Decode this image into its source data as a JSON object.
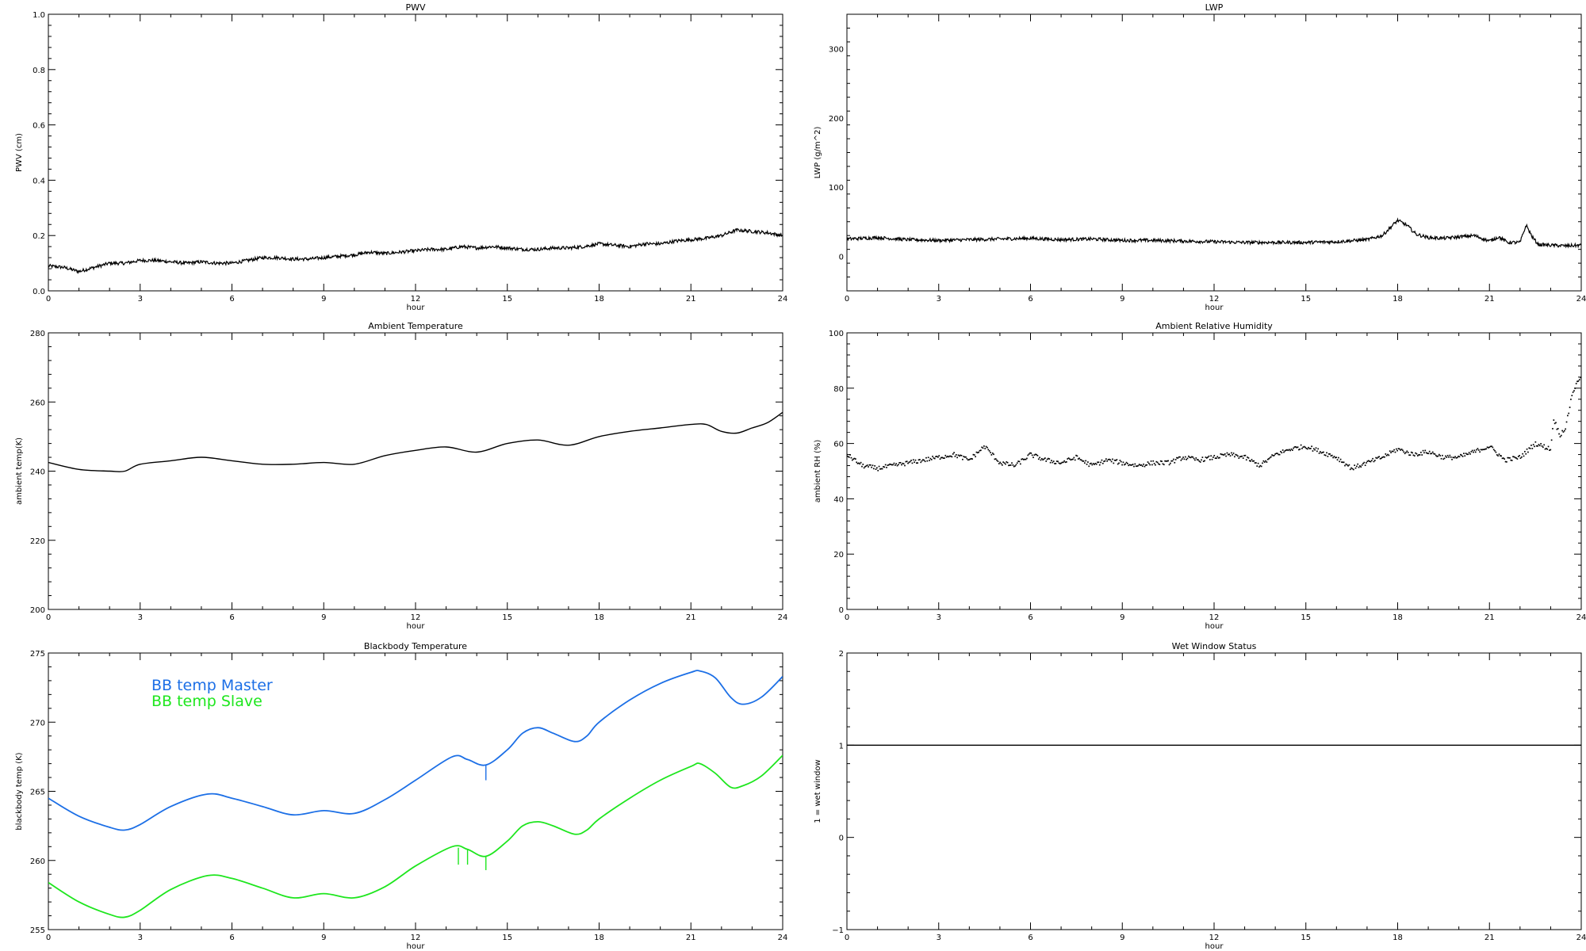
{
  "colors": {
    "axis": "#000000",
    "trace": "#000000",
    "master": "#1c6fe6",
    "slave": "#1ee61e"
  },
  "chart_data": [
    {
      "id": "pwv",
      "type": "line",
      "title": "PWV",
      "xlabel": "hour",
      "ylabel": "PWV (cm)",
      "xlim": [
        0,
        24
      ],
      "ylim": [
        0,
        1.0
      ],
      "xticks": [
        0,
        3,
        6,
        9,
        12,
        15,
        18,
        21,
        24
      ],
      "yticks": [
        0.0,
        0.2,
        0.4,
        0.6,
        0.8,
        1.0
      ],
      "ytick_labels": [
        "0.0",
        "0.2",
        "0.4",
        "0.6",
        "0.8",
        "1.0"
      ],
      "grid": false,
      "noisy": true,
      "series": [
        {
          "color": "trace",
          "x": [
            0,
            0.5,
            1.0,
            1.5,
            2.0,
            2.5,
            3.0,
            3.5,
            4.0,
            4.5,
            5.0,
            5.5,
            6.0,
            6.5,
            7.0,
            7.5,
            8.0,
            8.5,
            9.0,
            9.5,
            10.0,
            10.5,
            11.0,
            11.5,
            12.0,
            12.5,
            13.0,
            13.5,
            14.0,
            14.5,
            15.0,
            15.5,
            16.0,
            16.5,
            17.0,
            17.5,
            18.0,
            18.5,
            19.0,
            19.5,
            20.0,
            20.5,
            21.0,
            21.5,
            22.0,
            22.5,
            23.0,
            23.5,
            24.0
          ],
          "y": [
            0.09,
            0.085,
            0.07,
            0.085,
            0.1,
            0.1,
            0.11,
            0.11,
            0.105,
            0.1,
            0.105,
            0.1,
            0.1,
            0.11,
            0.12,
            0.12,
            0.115,
            0.115,
            0.12,
            0.125,
            0.13,
            0.14,
            0.135,
            0.14,
            0.145,
            0.15,
            0.15,
            0.16,
            0.155,
            0.16,
            0.155,
            0.15,
            0.15,
            0.155,
            0.155,
            0.16,
            0.17,
            0.165,
            0.16,
            0.17,
            0.17,
            0.18,
            0.185,
            0.19,
            0.2,
            0.22,
            0.215,
            0.21,
            0.2
          ]
        }
      ]
    },
    {
      "id": "lwp",
      "type": "line",
      "title": "LWP",
      "xlabel": "hour",
      "ylabel": "LWP (g/m^2)",
      "xlim": [
        0,
        24
      ],
      "ylim": [
        -50,
        350
      ],
      "xticks": [
        0,
        3,
        6,
        9,
        12,
        15,
        18,
        21,
        24
      ],
      "yticks": [
        0,
        100,
        200,
        300
      ],
      "ytick_labels": [
        "0",
        "100",
        "200",
        "300"
      ],
      "grid": false,
      "noisy": true,
      "series": [
        {
          "color": "trace",
          "x": [
            0,
            1,
            2,
            3,
            4,
            5,
            6,
            7,
            8,
            9,
            10,
            11,
            12,
            13,
            14,
            15,
            16,
            17,
            17.5,
            18.0,
            18.3,
            18.6,
            19.0,
            19.5,
            20.0,
            20.5,
            21.0,
            21.3,
            21.6,
            22.0,
            22.2,
            22.4,
            22.6,
            23.0,
            23.5,
            24.0
          ],
          "y": [
            25,
            27,
            24,
            23,
            24,
            25,
            26,
            24,
            25,
            23,
            23,
            22,
            21,
            20,
            20,
            20,
            21,
            24,
            30,
            52,
            45,
            32,
            27,
            26,
            28,
            30,
            22,
            28,
            20,
            20,
            45,
            28,
            17,
            16,
            15,
            16
          ]
        }
      ]
    },
    {
      "id": "ambient_temperature",
      "type": "line",
      "title": "Ambient Temperature",
      "xlabel": "hour",
      "ylabel": "ambient temp(K)",
      "xlim": [
        0,
        24
      ],
      "ylim": [
        200,
        280
      ],
      "xticks": [
        0,
        3,
        6,
        9,
        12,
        15,
        18,
        21,
        24
      ],
      "yticks": [
        200,
        220,
        240,
        260,
        280
      ],
      "ytick_labels": [
        "200",
        "220",
        "240",
        "260",
        "280"
      ],
      "grid": false,
      "noisy": false,
      "series": [
        {
          "color": "trace",
          "x": [
            0,
            1,
            2,
            2.5,
            3,
            4,
            5,
            6,
            7,
            8,
            9,
            10,
            11,
            12,
            13,
            14,
            15,
            16,
            17,
            18,
            19,
            20,
            21,
            21.5,
            22,
            22.5,
            23,
            23.5,
            24
          ],
          "y": [
            242.5,
            240.5,
            240,
            240,
            242,
            243,
            244,
            243,
            242,
            242,
            242.5,
            242,
            244.5,
            246,
            247,
            245.5,
            248,
            249,
            247.5,
            250,
            251.5,
            252.5,
            253.5,
            253.5,
            251.5,
            251,
            252.5,
            254,
            257
          ]
        }
      ]
    },
    {
      "id": "ambient_relative_humidity",
      "type": "scatter",
      "title": "Ambient Relative Humidity",
      "xlabel": "hour",
      "ylabel": "ambient RH (%)",
      "xlim": [
        0,
        24
      ],
      "ylim": [
        0,
        100
      ],
      "xticks": [
        0,
        3,
        6,
        9,
        12,
        15,
        18,
        21,
        24
      ],
      "yticks": [
        0,
        20,
        40,
        60,
        80,
        100
      ],
      "ytick_labels": [
        "0",
        "20",
        "40",
        "60",
        "80",
        "100"
      ],
      "grid": false,
      "noisy": true,
      "series": [
        {
          "color": "trace",
          "x": [
            0,
            0.5,
            1,
            1.5,
            2,
            2.5,
            3,
            3.5,
            4,
            4.5,
            5,
            5.5,
            6,
            6.5,
            7,
            7.5,
            8,
            8.5,
            9,
            9.5,
            10,
            10.5,
            11,
            11.5,
            12,
            12.5,
            13,
            13.5,
            14,
            14.5,
            15,
            15.5,
            16,
            16.5,
            17,
            17.5,
            18,
            18.5,
            19,
            19.5,
            20,
            20.5,
            21,
            21.5,
            22,
            22.5,
            23.0,
            23.1,
            23.3,
            23.5,
            23.7,
            24.0
          ],
          "y": [
            56,
            52,
            51,
            52,
            53,
            54,
            55,
            56,
            54,
            59,
            53,
            52,
            56,
            54,
            53,
            55,
            52,
            54,
            53,
            52,
            53,
            53,
            55,
            54,
            55,
            56,
            55,
            52,
            56,
            58,
            59,
            57,
            55,
            51,
            53,
            55,
            58,
            56,
            57,
            55,
            55,
            57,
            59,
            54,
            55,
            60,
            58,
            69,
            63,
            66,
            78,
            85
          ]
        }
      ]
    },
    {
      "id": "blackbody_temperature",
      "type": "line",
      "title": "Blackbody Temperature",
      "xlabel": "hour",
      "ylabel": "blackbody temp (K)",
      "xlim": [
        0,
        24
      ],
      "ylim": [
        255,
        275
      ],
      "xticks": [
        0,
        3,
        6,
        9,
        12,
        15,
        18,
        21,
        24
      ],
      "yticks": [
        255,
        260,
        265,
        270,
        275
      ],
      "ytick_labels": [
        "255",
        "260",
        "265",
        "270",
        "275"
      ],
      "grid": false,
      "noisy": false,
      "legend": {
        "placement": "top-left"
      },
      "series": [
        {
          "name": "BB temp Master",
          "color": "master",
          "x": [
            0,
            1,
            2,
            2.5,
            3,
            4,
            5.2,
            6,
            7,
            8,
            9,
            10,
            11,
            12,
            13.2,
            13.7,
            14.3,
            15,
            15.5,
            16,
            16.5,
            17.2,
            17.6,
            18,
            19,
            20,
            21,
            21.3,
            21.8,
            22.3,
            22.7,
            23.3,
            24
          ],
          "y": [
            264.5,
            263.2,
            262.4,
            262.2,
            262.6,
            263.9,
            264.8,
            264.5,
            263.9,
            263.3,
            263.6,
            263.4,
            264.4,
            265.8,
            267.5,
            267.3,
            266.9,
            268,
            269.2,
            269.6,
            269.2,
            268.6,
            269,
            270,
            271.6,
            272.8,
            273.6,
            273.7,
            273.2,
            271.8,
            271.3,
            271.8,
            273.3
          ],
          "spikes": [
            {
              "x": 14.3,
              "to": 265.8
            }
          ]
        },
        {
          "name": "BB temp Slave",
          "color": "slave",
          "x": [
            0,
            1,
            2,
            2.5,
            3,
            4,
            5.2,
            6,
            7,
            8,
            9,
            10,
            11,
            12,
            13.2,
            13.7,
            14.3,
            15,
            15.5,
            16,
            16.5,
            17.2,
            17.6,
            18,
            19,
            20,
            21,
            21.3,
            21.8,
            22.3,
            22.7,
            23.3,
            24
          ],
          "y": [
            258.4,
            257,
            256.1,
            255.9,
            256.4,
            257.9,
            258.9,
            258.7,
            258,
            257.3,
            257.6,
            257.3,
            258.1,
            259.6,
            261,
            260.8,
            260.3,
            261.4,
            262.5,
            262.8,
            262.5,
            261.9,
            262.2,
            263,
            264.5,
            265.8,
            266.8,
            267,
            266.3,
            265.3,
            265.4,
            266.1,
            267.6
          ],
          "spikes": [
            {
              "x": 13.4,
              "to": 259.7
            },
            {
              "x": 13.7,
              "to": 259.7
            },
            {
              "x": 14.3,
              "to": 259.3
            }
          ]
        }
      ]
    },
    {
      "id": "wet_window_status",
      "type": "line",
      "title": "Wet Window Status",
      "xlabel": "hour",
      "ylabel": "1 = wet window",
      "xlim": [
        0,
        24
      ],
      "ylim": [
        -1,
        2
      ],
      "xticks": [
        0,
        3,
        6,
        9,
        12,
        15,
        18,
        21,
        24
      ],
      "yticks": [
        -1,
        0,
        1,
        2
      ],
      "ytick_labels": [
        "−1",
        "0",
        "1",
        "2"
      ],
      "grid": false,
      "noisy": false,
      "series": [
        {
          "color": "trace",
          "x": [
            0,
            24
          ],
          "y": [
            1,
            1
          ]
        }
      ]
    }
  ]
}
